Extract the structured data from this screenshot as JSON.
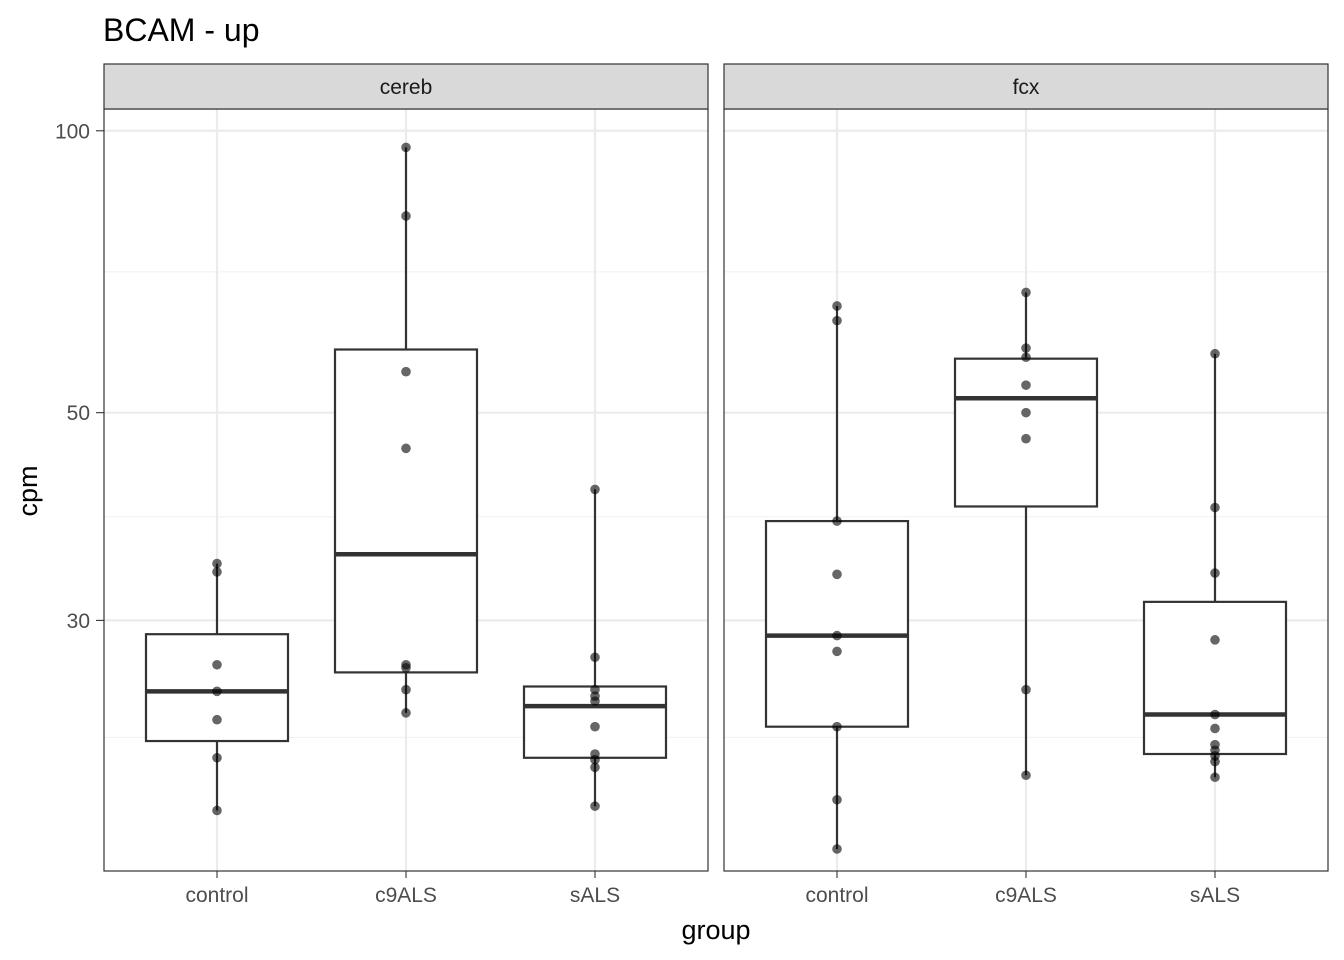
{
  "chart_data": {
    "type": "boxplot",
    "title": "BCAM - up",
    "xlabel": "group",
    "ylabel": "cpm",
    "y_scale": "log10",
    "ylim": [
      16.2,
      105.5
    ],
    "y_major_ticks": [
      30,
      50,
      100
    ],
    "y_minor_ticks": [
      22.5,
      38.7,
      70.7
    ],
    "categories": [
      "control",
      "c9ALS",
      "sALS"
    ],
    "facets": [
      {
        "name": "cereb",
        "groups": [
          {
            "group": "control",
            "q1": 22.3,
            "median": 25.2,
            "q3": 29.0,
            "whisker_low": 18.8,
            "whisker_high": 34.5,
            "points": [
              34.5,
              33.8,
              26.9,
              25.2,
              23.5,
              21.4,
              18.8
            ]
          },
          {
            "group": "c9ALS",
            "q1": 26.4,
            "median": 35.3,
            "q3": 58.4,
            "whisker_low": 23.9,
            "whisker_high": 96.0,
            "points": [
              96.0,
              81.1,
              55.3,
              45.8,
              26.9,
              26.7,
              25.3,
              23.9
            ]
          },
          {
            "group": "sALS",
            "q1": 21.4,
            "median": 24.3,
            "q3": 25.5,
            "whisker_low": 19.0,
            "whisker_high": 41.4,
            "points": [
              41.4,
              27.4,
              25.3,
              24.9,
              24.6,
              23.1,
              21.6,
              21.3,
              20.9,
              19.0
            ]
          }
        ]
      },
      {
        "name": "fcx",
        "groups": [
          {
            "group": "control",
            "q1": 23.1,
            "median": 28.9,
            "q3": 38.3,
            "whisker_low": 17.1,
            "whisker_high": 65.0,
            "points": [
              65.0,
              62.7,
              38.3,
              33.6,
              28.9,
              27.8,
              23.1,
              19.3,
              17.1
            ]
          },
          {
            "group": "c9ALS",
            "q1": 39.7,
            "median": 51.8,
            "q3": 57.1,
            "whisker_low": 20.5,
            "whisker_high": 67.2,
            "points": [
              67.2,
              58.6,
              57.3,
              53.5,
              50.0,
              46.9,
              25.3,
              20.5
            ]
          },
          {
            "group": "sALS",
            "q1": 21.6,
            "median": 23.8,
            "q3": 31.4,
            "whisker_low": 20.4,
            "whisker_high": 57.8,
            "points": [
              57.8,
              39.6,
              33.7,
              28.6,
              23.8,
              23.0,
              22.1,
              21.8,
              21.5,
              21.2,
              20.4
            ]
          }
        ]
      }
    ],
    "colors": {
      "panel_border": "#333333",
      "strip_fill": "#d9d9d9",
      "grid_major": "#ebebeb",
      "grid_minor": "#f2f2f2",
      "box_line": "#333333",
      "point": "#000000",
      "tick_label": "#4d4d4d"
    }
  }
}
